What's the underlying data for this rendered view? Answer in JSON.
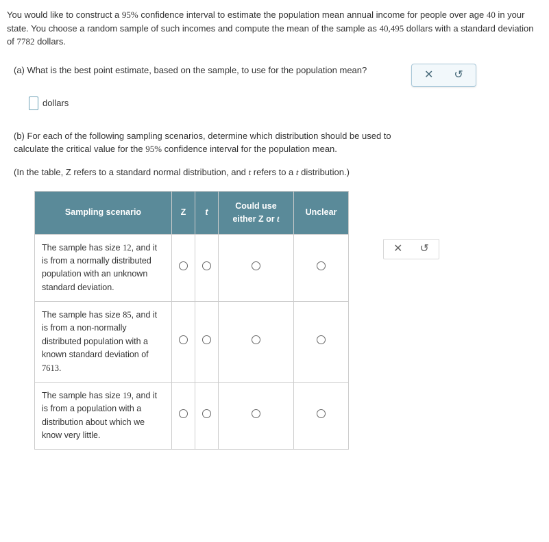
{
  "intro": {
    "p1a": "You would like to construct a ",
    "ci": "95%",
    "p1b": " confidence interval to estimate the population mean annual income for people over age ",
    "age": "40",
    "p1c": " in your state. You choose a random sample of such incomes and compute the mean of the sample as ",
    "mean": "40,495",
    "p1d": " dollars with a standard deviation of ",
    "sd": "7782",
    "p1e": " dollars."
  },
  "partA": {
    "question": "(a) What is the best point estimate, based on the sample, to use for the population mean?",
    "unit": "dollars"
  },
  "partB": {
    "text1a": "(b) For each of the following sampling scenarios, determine which distribution should be used to calculate the critical value for the ",
    "ci": "95%",
    "text1b": " confidence interval for the population mean.",
    "note_a": "(In the table, Z refers to a standard normal distribution, and ",
    "note_t": "t",
    "note_b": " refers to a ",
    "note_t2": "t",
    "note_c": " distribution.)"
  },
  "table": {
    "headers": {
      "scenario": "Sampling scenario",
      "z": "Z",
      "t": "t",
      "could_a": "Could use",
      "could_b": "either Z or ",
      "could_t": "t",
      "unclear": "Unclear"
    },
    "rows": [
      {
        "a": "The sample has size ",
        "n": "12",
        "b": ", and it is from a normally distributed population with an unknown standard deviation."
      },
      {
        "a": "The sample has size ",
        "n": "85",
        "b": ", and it is from a non-normally distributed population with a known standard deviation of ",
        "sd": "7613",
        "c": "."
      },
      {
        "a": "The sample has size ",
        "n": "19",
        "b": ", and it is from a population with a distribution about which we know very little."
      }
    ]
  },
  "icons": {
    "close": "✕",
    "reset": "↺"
  }
}
